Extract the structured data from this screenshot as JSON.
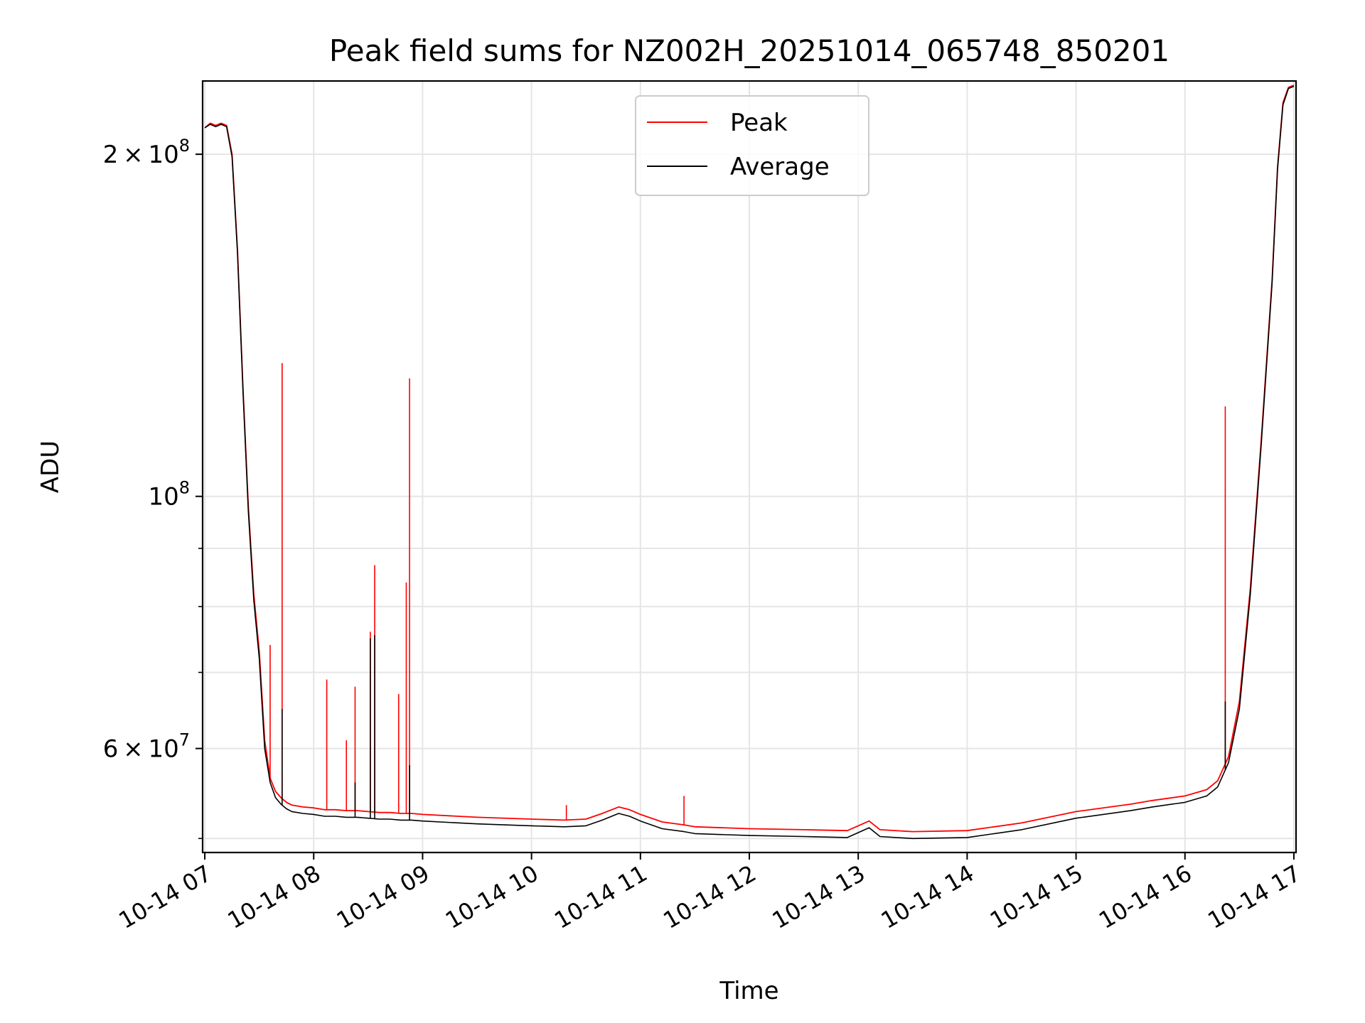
{
  "chart_data": {
    "type": "line",
    "title": "Peak field sums for NZ002H_20251014_065748_850201",
    "xlabel": "Time",
    "ylabel": "ADU",
    "yscale": "log",
    "grid": true,
    "legend_placement": "upper-center",
    "x_units": "hours since 10-14 00:00",
    "xlim": [
      6.98,
      17.02
    ],
    "ylim": [
      48600000,
      232000000
    ],
    "x_ticks": [
      {
        "value": 7,
        "label": "10-14 07"
      },
      {
        "value": 8,
        "label": "10-14 08"
      },
      {
        "value": 9,
        "label": "10-14 09"
      },
      {
        "value": 10,
        "label": "10-14 10"
      },
      {
        "value": 11,
        "label": "10-14 11"
      },
      {
        "value": 12,
        "label": "10-14 12"
      },
      {
        "value": 13,
        "label": "10-14 13"
      },
      {
        "value": 14,
        "label": "10-14 14"
      },
      {
        "value": 15,
        "label": "10-14 15"
      },
      {
        "value": 16,
        "label": "10-14 16"
      },
      {
        "value": 17,
        "label": "10-14 17"
      }
    ],
    "y_major_ticks": [
      {
        "value": 60000000,
        "mantissa": "6",
        "exponent": "7"
      },
      {
        "value": 100000000,
        "mantissa": "",
        "exponent": "8"
      },
      {
        "value": 200000000,
        "mantissa": "2",
        "exponent": "8"
      }
    ],
    "y_minor_ticks": [
      50000000,
      70000000,
      80000000,
      90000000
    ],
    "tick_prefix": "10",
    "series": [
      {
        "name": "Peak",
        "color": "#ff0000",
        "x": [
          7.0,
          7.05,
          7.1,
          7.15,
          7.2,
          7.25,
          7.3,
          7.35,
          7.4,
          7.45,
          7.5,
          7.55,
          7.6,
          7.65,
          7.7,
          7.75,
          7.8,
          7.9,
          8.0,
          8.1,
          8.2,
          8.3,
          8.4,
          8.5,
          8.6,
          8.7,
          8.8,
          8.9,
          9.0,
          9.5,
          10.0,
          10.3,
          10.5,
          10.65,
          10.8,
          10.9,
          11.0,
          11.2,
          11.4,
          11.5,
          12.0,
          12.5,
          12.9,
          13.1,
          13.2,
          13.5,
          14.0,
          14.5,
          15.0,
          15.5,
          15.7,
          16.0,
          16.2,
          16.3,
          16.4,
          16.5,
          16.6,
          16.7,
          16.8,
          16.85,
          16.9,
          16.95,
          17.0
        ],
        "y": [
          211000000,
          213000000,
          212000000,
          213000000,
          212000000,
          200000000,
          165000000,
          125000000,
          98000000,
          82000000,
          73000000,
          61000000,
          56500000,
          55000000,
          54300000,
          53800000,
          53500000,
          53300000,
          53200000,
          53000000,
          53000000,
          52900000,
          52900000,
          52800000,
          52700000,
          52700000,
          52600000,
          52600000,
          52500000,
          52200000,
          52000000,
          51900000,
          52000000,
          52600000,
          53300000,
          53000000,
          52500000,
          51700000,
          51400000,
          51200000,
          51000000,
          50900000,
          50800000,
          51800000,
          50900000,
          50700000,
          50800000,
          51600000,
          52800000,
          53600000,
          54000000,
          54500000,
          55200000,
          56200000,
          59000000,
          66000000,
          83000000,
          112000000,
          155000000,
          195000000,
          222000000,
          229000000,
          230000000
        ],
        "spikes": [
          {
            "x": 7.71,
            "y": 131000000
          },
          {
            "x": 7.6,
            "y": 74000000
          },
          {
            "x": 8.12,
            "y": 69000000
          },
          {
            "x": 8.3,
            "y": 61000000
          },
          {
            "x": 8.38,
            "y": 68000000
          },
          {
            "x": 8.52,
            "y": 76000000
          },
          {
            "x": 8.56,
            "y": 87000000
          },
          {
            "x": 8.78,
            "y": 67000000
          },
          {
            "x": 8.85,
            "y": 84000000
          },
          {
            "x": 8.88,
            "y": 127000000
          },
          {
            "x": 10.32,
            "y": 53500000
          },
          {
            "x": 11.4,
            "y": 54500000
          },
          {
            "x": 16.37,
            "y": 120000000
          }
        ]
      },
      {
        "name": "Average",
        "color": "#000000",
        "x": [
          7.0,
          7.05,
          7.1,
          7.15,
          7.2,
          7.25,
          7.3,
          7.35,
          7.4,
          7.45,
          7.5,
          7.55,
          7.6,
          7.65,
          7.7,
          7.75,
          7.8,
          7.9,
          8.0,
          8.1,
          8.2,
          8.3,
          8.4,
          8.5,
          8.6,
          8.7,
          8.8,
          8.9,
          9.0,
          9.5,
          10.0,
          10.3,
          10.5,
          10.65,
          10.8,
          10.9,
          11.0,
          11.2,
          11.4,
          11.5,
          12.0,
          12.5,
          12.9,
          13.1,
          13.2,
          13.5,
          14.0,
          14.5,
          15.0,
          15.5,
          15.7,
          16.0,
          16.2,
          16.3,
          16.4,
          16.5,
          16.6,
          16.7,
          16.8,
          16.85,
          16.9,
          16.95,
          17.0
        ],
        "y": [
          211000000,
          212500000,
          211500000,
          212500000,
          211500000,
          199000000,
          164000000,
          124000000,
          97000000,
          81000000,
          72000000,
          60000000,
          56000000,
          54300000,
          53600000,
          53100000,
          52800000,
          52600000,
          52500000,
          52300000,
          52300000,
          52200000,
          52200000,
          52100000,
          52000000,
          52000000,
          51900000,
          51900000,
          51800000,
          51500000,
          51300000,
          51200000,
          51300000,
          51900000,
          52600000,
          52300000,
          51800000,
          51000000,
          50700000,
          50500000,
          50300000,
          50200000,
          50100000,
          51100000,
          50200000,
          50000000,
          50100000,
          50900000,
          52100000,
          52900000,
          53300000,
          53800000,
          54500000,
          55500000,
          58300000,
          65000000,
          82000000,
          111000000,
          154000000,
          194000000,
          221000000,
          228500000,
          229500000
        ],
        "spikes": [
          {
            "x": 7.71,
            "y": 65000000
          },
          {
            "x": 8.38,
            "y": 56000000
          },
          {
            "x": 8.52,
            "y": 75000000
          },
          {
            "x": 8.56,
            "y": 75500000
          },
          {
            "x": 8.88,
            "y": 58000000
          },
          {
            "x": 16.37,
            "y": 66000000
          }
        ]
      }
    ]
  }
}
